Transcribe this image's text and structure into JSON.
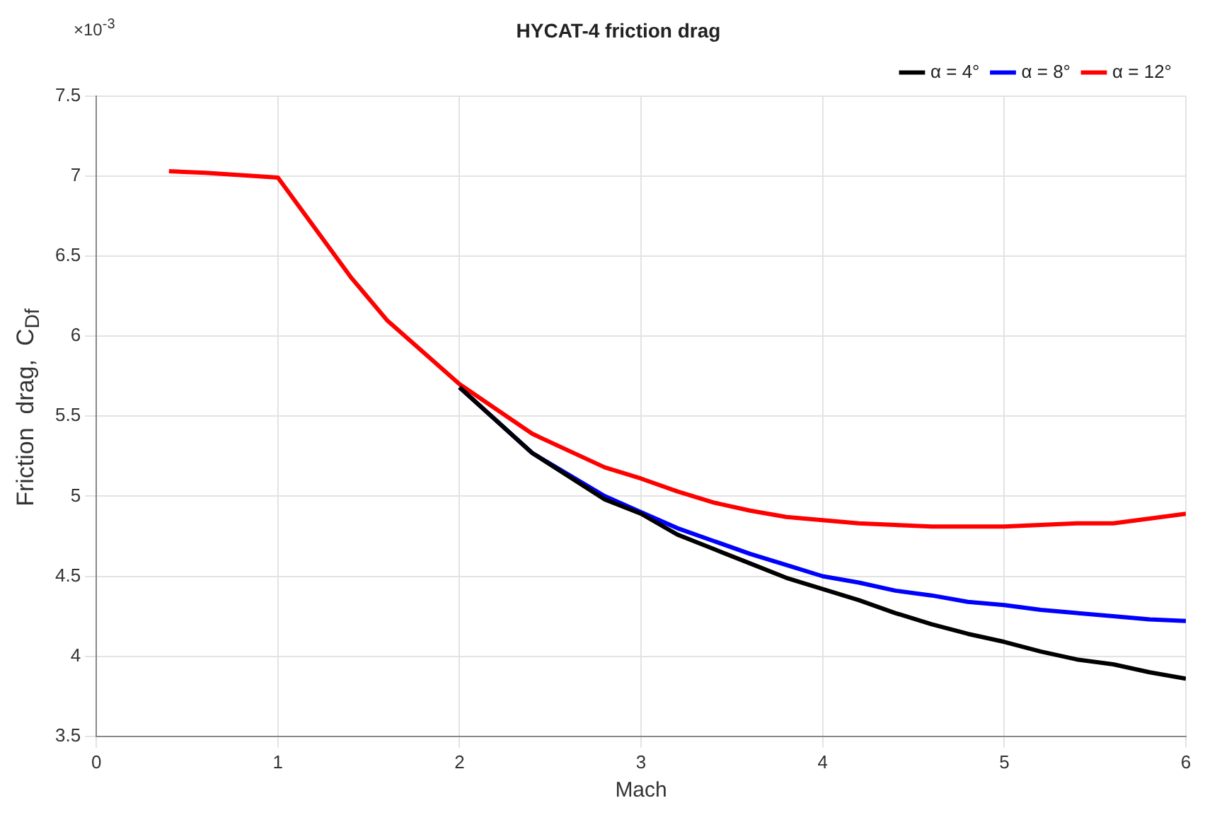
{
  "chart_data": {
    "type": "line",
    "title": "HYCAT-4 friction drag",
    "xlabel": "Mach",
    "ylabel": "Friction  drag,  C$_{Df}$",
    "annotations": [
      "×10$^{-3}$"
    ],
    "x": [
      0.4,
      0.6,
      1.0,
      1.4,
      1.6,
      2.0,
      2.4,
      2.8,
      3.0,
      3.2,
      3.4,
      3.6,
      3.8,
      4.0,
      4.2,
      4.4,
      4.6,
      4.8,
      5.0,
      5.2,
      5.4,
      5.6,
      5.8,
      6.0
    ],
    "series": [
      {
        "name": "α = 4°",
        "color": "#000000",
        "x": [
          2.0,
          2.4,
          2.8,
          3.0,
          3.2,
          3.4,
          3.6,
          3.8,
          4.0,
          4.2,
          4.4,
          4.6,
          4.8,
          5.0,
          5.2,
          5.4,
          5.6,
          5.8,
          6.0
        ],
        "values": [
          5.68,
          5.27,
          4.98,
          4.89,
          4.76,
          4.67,
          4.58,
          4.49,
          4.42,
          4.35,
          4.27,
          4.2,
          4.14,
          4.09,
          4.03,
          3.98,
          3.95,
          3.9,
          3.86
        ]
      },
      {
        "name": "α = 8°",
        "color": "#0000ff",
        "x": [
          2.0,
          2.4,
          2.8,
          3.0,
          3.2,
          3.4,
          3.6,
          3.8,
          4.0,
          4.2,
          4.4,
          4.6,
          4.8,
          5.0,
          5.2,
          5.4,
          5.6,
          5.8,
          6.0
        ],
        "values": [
          5.68,
          5.27,
          5.0,
          4.9,
          4.8,
          4.72,
          4.64,
          4.57,
          4.5,
          4.46,
          4.41,
          4.38,
          4.34,
          4.32,
          4.29,
          4.27,
          4.25,
          4.23,
          4.22
        ]
      },
      {
        "name": "α = 12°",
        "color": "#ff0000",
        "values": [
          7.03,
          7.02,
          6.99,
          6.37,
          6.1,
          5.7,
          5.39,
          5.18,
          5.11,
          5.03,
          4.96,
          4.91,
          4.87,
          4.85,
          4.83,
          4.82,
          4.81,
          4.81,
          4.81,
          4.82,
          4.83,
          4.83,
          4.86,
          4.89
        ]
      }
    ],
    "xlim": [
      0,
      6
    ],
    "xticks": [
      0,
      1,
      2,
      3,
      4,
      5,
      6
    ],
    "ylim": [
      3.5,
      7.5
    ],
    "yticks": [
      3.5,
      4,
      4.5,
      5,
      5.5,
      6,
      6.5,
      7,
      7.5
    ],
    "grid": true,
    "legend": "top right",
    "line_style": "solid",
    "marker": "none"
  }
}
